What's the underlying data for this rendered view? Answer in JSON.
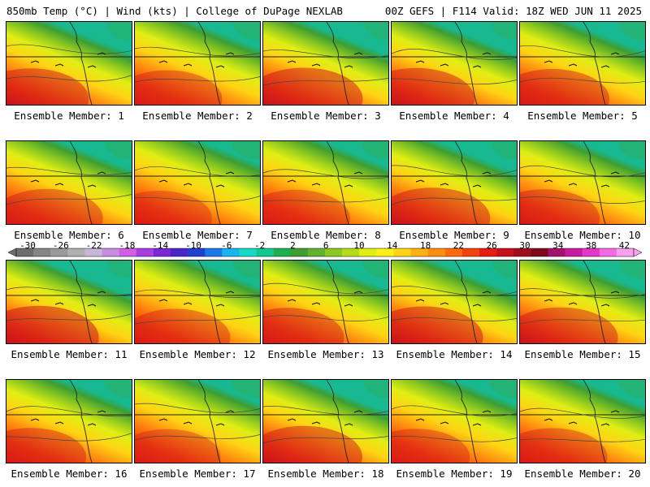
{
  "header": {
    "left": "850mb Temp (°C) | Wind (kts) | College of DuPage NEXLAB",
    "right": "00Z GEFS | F114 Valid: 18Z WED JUN 11 2025"
  },
  "members": [
    {
      "label": "Ensemble Member: 1",
      "warmth": 0.85
    },
    {
      "label": "Ensemble Member: 2",
      "warmth": 0.7
    },
    {
      "label": "Ensemble Member: 3",
      "warmth": 0.9
    },
    {
      "label": "Ensemble Member: 4",
      "warmth": 0.88
    },
    {
      "label": "Ensemble Member: 5",
      "warmth": 0.8
    },
    {
      "label": "Ensemble Member: 6",
      "warmth": 0.75
    },
    {
      "label": "Ensemble Member: 7",
      "warmth": 0.6
    },
    {
      "label": "Ensemble Member: 8",
      "warmth": 0.68
    },
    {
      "label": "Ensemble Member: 9",
      "warmth": 0.85
    },
    {
      "label": "Ensemble Member: 10",
      "warmth": 0.72
    },
    {
      "label": "Ensemble Member: 11",
      "warmth": 0.95
    },
    {
      "label": "Ensemble Member: 12",
      "warmth": 0.7
    },
    {
      "label": "Ensemble Member: 13",
      "warmth": 0.78
    },
    {
      "label": "Ensemble Member: 14",
      "warmth": 0.9
    },
    {
      "label": "Ensemble Member: 15",
      "warmth": 0.82
    },
    {
      "label": "Ensemble Member: 16",
      "warmth": 0.72
    },
    {
      "label": "Ensemble Member: 17",
      "warmth": 0.62
    },
    {
      "label": "Ensemble Member: 18",
      "warmth": 0.88
    },
    {
      "label": "Ensemble Member: 19",
      "warmth": 0.65
    },
    {
      "label": "Ensemble Member: 20",
      "warmth": 0.7
    }
  ],
  "colorbar": {
    "ticks": [
      "-30",
      "-26",
      "-22",
      "-18",
      "-14",
      "-10",
      "-6",
      "-2",
      "2",
      "6",
      "10",
      "14",
      "18",
      "22",
      "26",
      "30",
      "34",
      "38",
      "42"
    ],
    "colors": [
      "#6d6d6d",
      "#858585",
      "#9a9a9a",
      "#b0b0b0",
      "#c6b7d8",
      "#c88de0",
      "#d25ee4",
      "#a83ee0",
      "#7a28d4",
      "#4a28c8",
      "#2040d0",
      "#1a78e8",
      "#1ab4f0",
      "#18d8c8",
      "#10c890",
      "#1eb050",
      "#3e9e32",
      "#62b030",
      "#8cc820",
      "#b4dc18",
      "#e0ee14",
      "#fff01a",
      "#ffd414",
      "#ffb212",
      "#ff8e10",
      "#ff6a0e",
      "#f4420c",
      "#e41c14",
      "#c8101c",
      "#a00c1c",
      "#7c081a",
      "#a4126e",
      "#c81ca0",
      "#e436c8",
      "#f56ae4",
      "#fca0f0"
    ]
  }
}
